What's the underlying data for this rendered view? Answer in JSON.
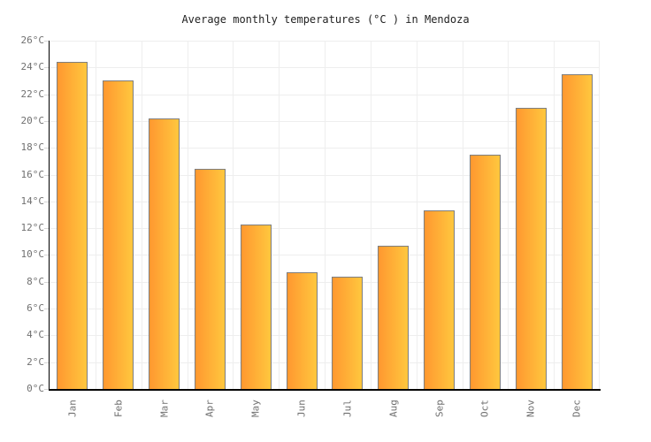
{
  "chart_data": {
    "type": "bar",
    "title": "Average monthly temperatures (°C ) in Mendoza",
    "categories": [
      "Jan",
      "Feb",
      "Mar",
      "Apr",
      "May",
      "Jun",
      "Jul",
      "Aug",
      "Sep",
      "Oct",
      "Nov",
      "Dec"
    ],
    "values": [
      24.4,
      23.0,
      20.2,
      16.4,
      12.3,
      8.7,
      8.4,
      10.7,
      13.3,
      17.5,
      21.0,
      23.5
    ],
    "xlabel": "",
    "ylabel": "",
    "ylim": [
      0,
      26
    ],
    "ytick_step": 2,
    "ytick_suffix": "°C",
    "grid": true,
    "legend": "none",
    "colors": {
      "bar_gradient_start": "#FF9830",
      "bar_gradient_end": "#FFC73E",
      "bar_border": "#7e7e7e",
      "gridline": "#eeeeee",
      "axis_line": "#000000",
      "tick": "#d6d6d6",
      "axis_label": "#707070",
      "title_text": "#222222",
      "background": "#ffffff"
    }
  }
}
